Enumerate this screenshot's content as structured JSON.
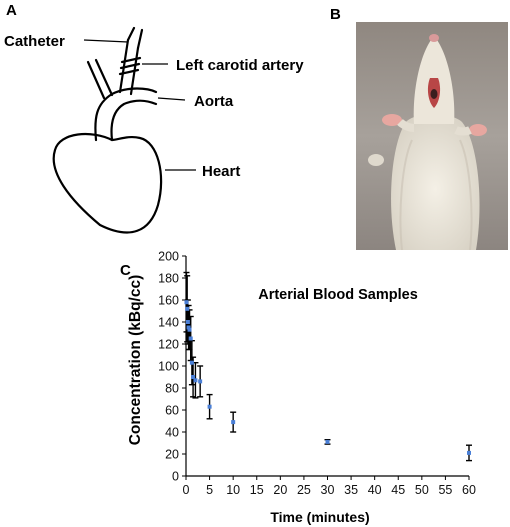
{
  "figure": {
    "panel_a": "A",
    "panel_b": "B",
    "panel_c": "C",
    "diagram_labels": {
      "catheter": "Catheter",
      "left_carotid_artery": "Left carotid artery",
      "aorta": "Aorta",
      "heart": "Heart"
    }
  },
  "chart_data": {
    "type": "scatter",
    "title": "Arterial Blood Samples",
    "xlabel": "Time (minutes)",
    "ylabel": "Concentration (kBq/cc)",
    "xlim": [
      0,
      60
    ],
    "ylim": [
      0,
      200
    ],
    "xticks": [
      0,
      5,
      10,
      15,
      20,
      25,
      30,
      35,
      40,
      45,
      50,
      55,
      60
    ],
    "yticks": [
      0,
      20,
      40,
      60,
      80,
      100,
      120,
      140,
      160,
      180,
      200
    ],
    "marker_color": "#4a7fd6",
    "error_color": "#000000",
    "points": [
      {
        "x": 0.1,
        "y": 158,
        "err": 27
      },
      {
        "x": 0.25,
        "y": 152,
        "err": 30
      },
      {
        "x": 0.4,
        "y": 140,
        "err": 20
      },
      {
        "x": 0.55,
        "y": 135,
        "err": 20
      },
      {
        "x": 0.75,
        "y": 133,
        "err": 18
      },
      {
        "x": 1.0,
        "y": 125,
        "err": 20
      },
      {
        "x": 1.25,
        "y": 103,
        "err": 20
      },
      {
        "x": 1.5,
        "y": 90,
        "err": 18
      },
      {
        "x": 2.0,
        "y": 87,
        "err": 16
      },
      {
        "x": 3.0,
        "y": 86,
        "err": 14
      },
      {
        "x": 5.0,
        "y": 63,
        "err": 11
      },
      {
        "x": 10.0,
        "y": 49,
        "err": 9
      },
      {
        "x": 30.0,
        "y": 31,
        "err": 2
      },
      {
        "x": 60.0,
        "y": 21,
        "err": 7
      }
    ]
  }
}
